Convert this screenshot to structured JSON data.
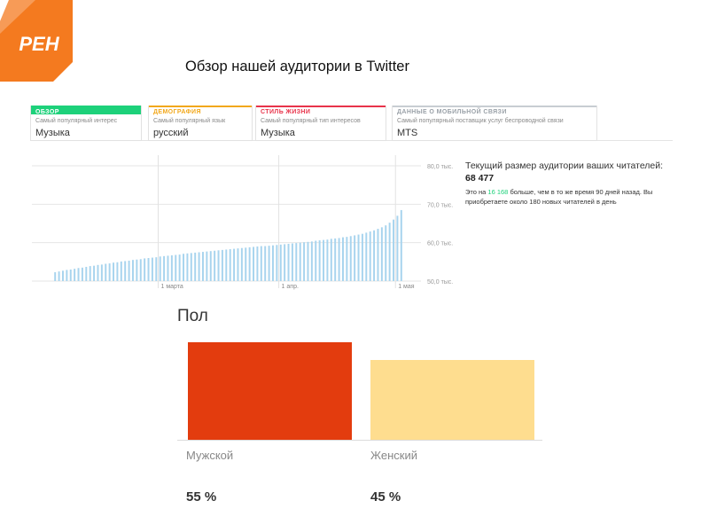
{
  "logo": {
    "text": "РЕН",
    "color": "#f47a1f"
  },
  "slide_title": "Обзор нашей аудитории в Twitter",
  "tabs": [
    {
      "heading": "ОБЗОР",
      "sub": "Самый популярный интерес",
      "value": "Музыка",
      "color": "#1dd17a",
      "active": true
    },
    {
      "heading": "ДЕМОГРАФИЯ",
      "sub": "Самый популярный язык",
      "value": "русский",
      "color": "#f2a81b"
    },
    {
      "heading": "СТИЛЬ ЖИЗНИ",
      "sub": "Самый популярный тип интересов",
      "value": "Музыка",
      "color": "#e8334a"
    },
    {
      "heading": "ДАННЫЕ О МОБИЛЬНОЙ СВЯЗИ",
      "sub": "Самый популярный поставщик услуг беспроводной связи",
      "value": "MTS",
      "color": "#9aa1a8"
    }
  ],
  "audience_info": {
    "headline_prefix": "Текущий размер аудитории ваших читателей:",
    "headline_value": "68 477",
    "detail_prefix": "Это на",
    "detail_highlight": "16 168",
    "detail_suffix": "больше, чем в то же время 90 дней назад. Вы приобретаете около 180 новых читателей в день"
  },
  "gender_title": "Пол",
  "chart_data": [
    {
      "type": "bar",
      "title": "",
      "ylim": [
        50000,
        80000
      ],
      "y_ticks": [
        {
          "value": 80000,
          "label": "80,0 тыс."
        },
        {
          "value": 70000,
          "label": "70,0 тыс."
        },
        {
          "value": 60000,
          "label": "60,0 тыс."
        },
        {
          "value": 50000,
          "label": "50,0 тыс."
        }
      ],
      "x_ticks": [
        {
          "index": 27,
          "label": "1 марта"
        },
        {
          "index": 58,
          "label": "1 апр."
        },
        {
          "index": 88,
          "label": "1 мая"
        }
      ],
      "grid": true,
      "color": "#a8d4ee",
      "series": [
        {
          "values": [
            52300,
            52500,
            52700,
            52900,
            53000,
            53200,
            53400,
            53500,
            53700,
            53900,
            54000,
            54200,
            54300,
            54500,
            54600,
            54800,
            54900,
            55100,
            55200,
            55300,
            55500,
            55600,
            55700,
            55900,
            56000,
            56100,
            56200,
            56400,
            56500,
            56600,
            56700,
            56800,
            56900,
            57100,
            57200,
            57300,
            57400,
            57500,
            57600,
            57700,
            57800,
            57900,
            58000,
            58100,
            58200,
            58300,
            58400,
            58500,
            58600,
            58700,
            58800,
            58900,
            59000,
            59100,
            59100,
            59200,
            59300,
            59400,
            59500,
            59600,
            59700,
            59800,
            59900,
            60000,
            60100,
            60200,
            60300,
            60500,
            60600,
            60700,
            60800,
            61000,
            61100,
            61200,
            61400,
            61500,
            61700,
            61900,
            62100,
            62300,
            62600,
            62900,
            63200,
            63600,
            64000,
            64500,
            65200,
            66000,
            67000,
            68477
          ]
        }
      ]
    },
    {
      "type": "bar",
      "title": "Пол",
      "categories": [
        "Мужской",
        "Женский"
      ],
      "values": [
        55,
        45
      ],
      "labels": [
        "55 %",
        "45 %"
      ],
      "colors": [
        "#e33c0e",
        "#fedd8f"
      ],
      "ylim": [
        0,
        55
      ]
    }
  ]
}
